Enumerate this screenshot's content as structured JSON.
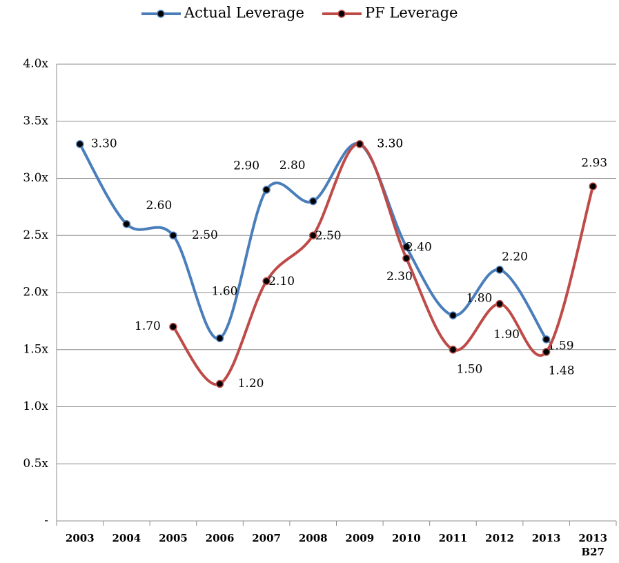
{
  "chart_data": {
    "type": "line",
    "categories": [
      "2003",
      "2004",
      "2005",
      "2006",
      "2007",
      "2008",
      "2009",
      "2010",
      "2011",
      "2012",
      "2013",
      "2013\nB27"
    ],
    "series": [
      {
        "name": "Actual Leverage",
        "color": "#4a7ebb",
        "values": [
          3.3,
          2.6,
          2.5,
          1.6,
          2.9,
          2.8,
          3.3,
          2.4,
          1.8,
          2.2,
          1.59,
          null
        ],
        "value_labels": [
          "3.30",
          "2.60",
          "2.50",
          "1.60",
          "2.90",
          "2.80",
          "3.30",
          "2.40",
          "1.80",
          "2.20",
          "1.59",
          null
        ]
      },
      {
        "name": "PF Leverage",
        "color": "#be4b48",
        "values": [
          null,
          null,
          1.7,
          1.2,
          2.1,
          2.5,
          3.3,
          2.3,
          1.5,
          1.9,
          1.48,
          2.93
        ],
        "value_labels": [
          null,
          null,
          "1.70",
          "1.20",
          "2.10",
          "2.50",
          "3.30",
          "2.30",
          "1.50",
          "1.90",
          "1.48",
          "2.93"
        ]
      }
    ],
    "ylim": [
      0,
      4
    ],
    "yticks": [
      {
        "value": 0,
        "label": "-"
      },
      {
        "value": 0.5,
        "label": "0.5x"
      },
      {
        "value": 1,
        "label": "1.0x"
      },
      {
        "value": 1.5,
        "label": "1.5x"
      },
      {
        "value": 2,
        "label": "2.0x"
      },
      {
        "value": 2.5,
        "label": "2.5x"
      },
      {
        "value": 3,
        "label": "3.0x"
      },
      {
        "value": 3.5,
        "label": "3.5x"
      },
      {
        "value": 4,
        "label": "4.0x"
      }
    ],
    "grid": true,
    "legend": "top",
    "smooth": true
  }
}
